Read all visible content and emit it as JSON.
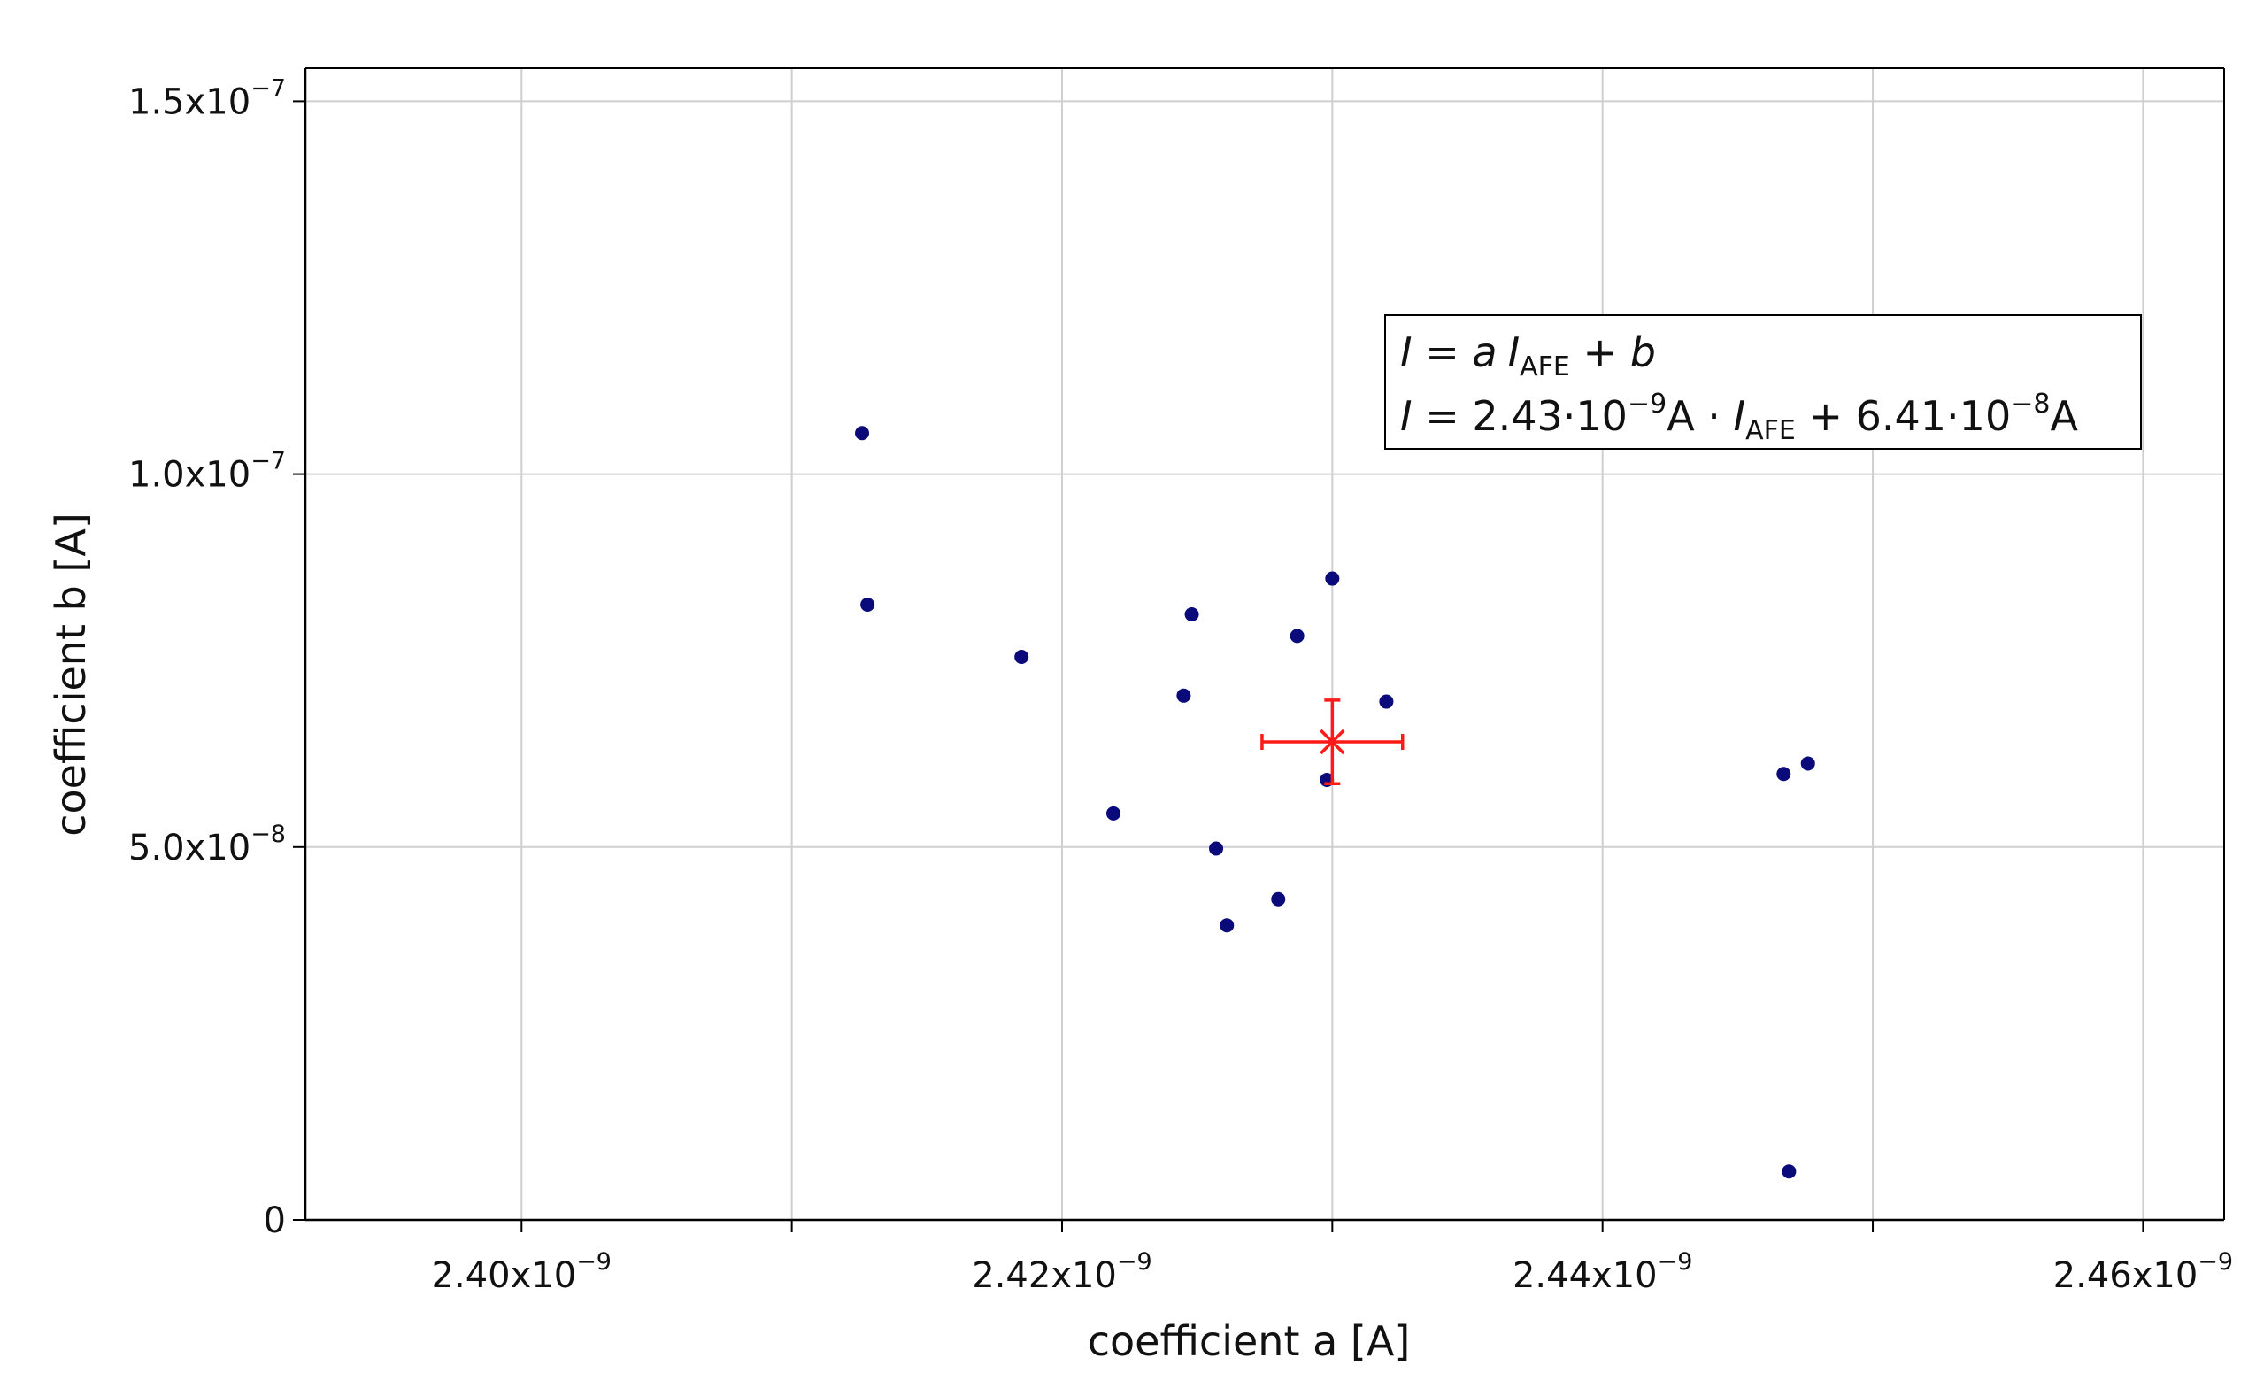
{
  "chart_data": {
    "type": "scatter",
    "title": "",
    "xlabel": "coefficient a [A]",
    "ylabel": "coefficient b [A]",
    "xlim": [
      2.392e-09,
      2.463e-09
    ],
    "ylim": [
      0,
      1.5444e-07
    ],
    "grid": true,
    "x_major_ticks": [
      {
        "value": 2.4e-09,
        "label": "2.40x10",
        "exp": "−9"
      },
      {
        "value": 2.42e-09,
        "label": "2.42x10",
        "exp": "−9"
      },
      {
        "value": 2.44e-09,
        "label": "2.44x10",
        "exp": "−9"
      },
      {
        "value": 2.46e-09,
        "label": "2.46x10",
        "exp": "−9"
      }
    ],
    "x_minor_ticks": [
      2.41e-09,
      2.43e-09,
      2.45e-09
    ],
    "y_major_ticks": [
      {
        "value": 0,
        "label": "0",
        "exp": ""
      },
      {
        "value": 5e-08,
        "label": "5.0x10",
        "exp": "−8"
      },
      {
        "value": 1e-07,
        "label": "1.0x10",
        "exp": "−7"
      },
      {
        "value": 1.5e-07,
        "label": "1.5x10",
        "exp": "−7"
      }
    ],
    "series": [
      {
        "color": "#0a0a7a",
        "x": [
          2.4126e-09,
          2.4128e-09,
          2.4185e-09,
          2.4219e-09,
          2.4245e-09,
          2.4248e-09,
          2.4257e-09,
          2.4261e-09,
          2.428e-09,
          2.4287e-09,
          2.4298e-09,
          2.43e-09,
          2.432e-09,
          2.4467e-09,
          2.4469e-09,
          2.4476e-09
        ],
        "y": [
          1.055e-07,
          8.25e-08,
          7.55e-08,
          5.45e-08,
          7.03e-08,
          8.12e-08,
          4.98e-08,
          3.95e-08,
          4.3e-08,
          7.83e-08,
          5.9e-08,
          8.6e-08,
          6.95e-08,
          5.98e-08,
          6.5e-09,
          6.12e-08
        ]
      }
    ],
    "fit_result": {
      "color": "#ff1a1a",
      "x": 2.43e-09,
      "y": 6.41e-08,
      "x_err": 2.6e-12,
      "y_err": 5.6e-09
    },
    "legend": {
      "position": "top-right",
      "line1": {
        "I": "I",
        "eq": " = ",
        "a": "a",
        "I2": "I",
        "sub": "AFE",
        "plus": " + ",
        "b": "b"
      },
      "line2": {
        "I": "I",
        "eq": " = ",
        "coef_a": "2.43·10",
        "exp_a": "−9",
        "unit_a": "A · ",
        "I2": "I",
        "sub": "AFE",
        "coef_b": " + 6.41·10",
        "exp_b": "−8",
        "unit_b": "A"
      }
    }
  }
}
